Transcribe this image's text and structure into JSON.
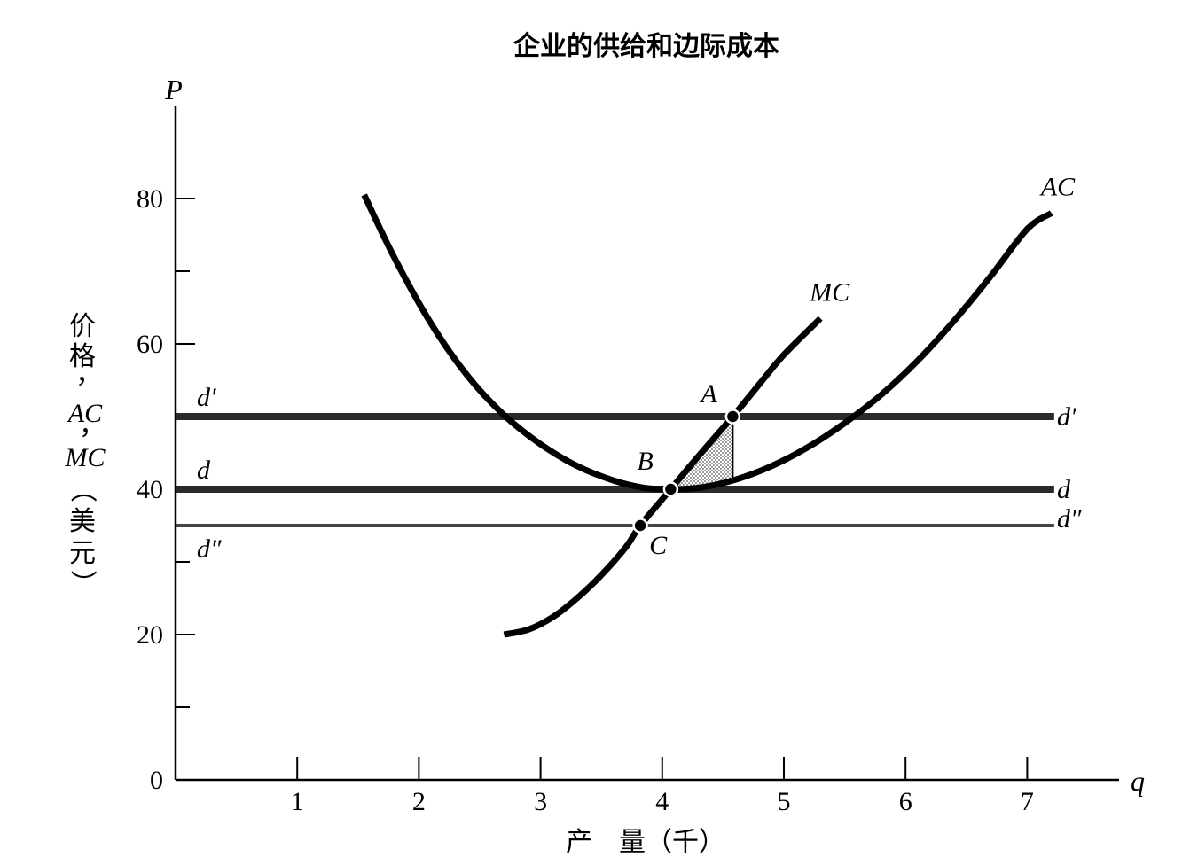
{
  "chart_data": {
    "type": "line",
    "title": "企业的供给和边际成本",
    "xlabel": "产　量（千）",
    "ylabel_axis_symbol": "P",
    "xlabel_axis_symbol": "q",
    "ylabel_parts": [
      "价",
      "格",
      "，",
      "AC",
      "，",
      "MC",
      "（",
      "美",
      "元",
      "）"
    ],
    "xlim": [
      0,
      7.6
    ],
    "ylim": [
      0,
      90
    ],
    "x_ticks": [
      1,
      2,
      3,
      4,
      5,
      6,
      7
    ],
    "x_tick_labels": [
      "1",
      "2",
      "3",
      "4",
      "5",
      "6",
      "7"
    ],
    "y_major_ticks": [
      0,
      20,
      40,
      60,
      80
    ],
    "y_tick_labels": [
      "0",
      "20",
      "40",
      "60",
      "80"
    ],
    "y_minor_ticks": [
      10,
      30,
      50,
      70
    ],
    "grid": false,
    "series": [
      {
        "name": "AC",
        "x": [
          1.55,
          1.8,
          2.1,
          2.4,
          2.7,
          3.0,
          3.3,
          3.6,
          3.85,
          4.05,
          4.3,
          4.6,
          4.9,
          5.2,
          5.5,
          5.8,
          6.1,
          6.4,
          6.7,
          7.0,
          7.2
        ],
        "y": [
          80.5,
          71.8,
          62.8,
          55.6,
          50.2,
          46.2,
          43.2,
          41.2,
          40.2,
          40.0,
          40.2,
          41.3,
          43.2,
          45.8,
          49.1,
          53.0,
          57.7,
          63.2,
          69.3,
          75.8,
          78.0
        ]
      },
      {
        "name": "MC",
        "x": [
          2.7,
          2.9,
          3.1,
          3.3,
          3.5,
          3.7,
          3.82,
          4.07,
          4.3,
          4.58,
          4.8,
          5.0,
          5.3
        ],
        "y": [
          20.0,
          20.7,
          22.4,
          25.0,
          28.2,
          32.0,
          35.0,
          40.0,
          44.6,
          50.0,
          54.5,
          58.5,
          63.5
        ]
      }
    ],
    "horizontal_lines": [
      {
        "name": "d′",
        "y": 50,
        "x_range": [
          0,
          7.2
        ],
        "weight": "heavy"
      },
      {
        "name": "d",
        "y": 40,
        "x_range": [
          0,
          7.2
        ],
        "weight": "heavy"
      },
      {
        "name": "d″",
        "y": 35,
        "x_range": [
          0,
          7.2
        ],
        "weight": "light"
      }
    ],
    "points": [
      {
        "label": "A",
        "x": 4.58,
        "y": 50
      },
      {
        "label": "B",
        "x": 4.07,
        "y": 40
      },
      {
        "label": "C",
        "x": 3.82,
        "y": 35
      }
    ],
    "shaded_region": {
      "description_hidden": true,
      "vertices": [
        [
          4.07,
          40
        ],
        [
          4.58,
          50
        ],
        [
          4.58,
          41.1
        ]
      ]
    }
  }
}
